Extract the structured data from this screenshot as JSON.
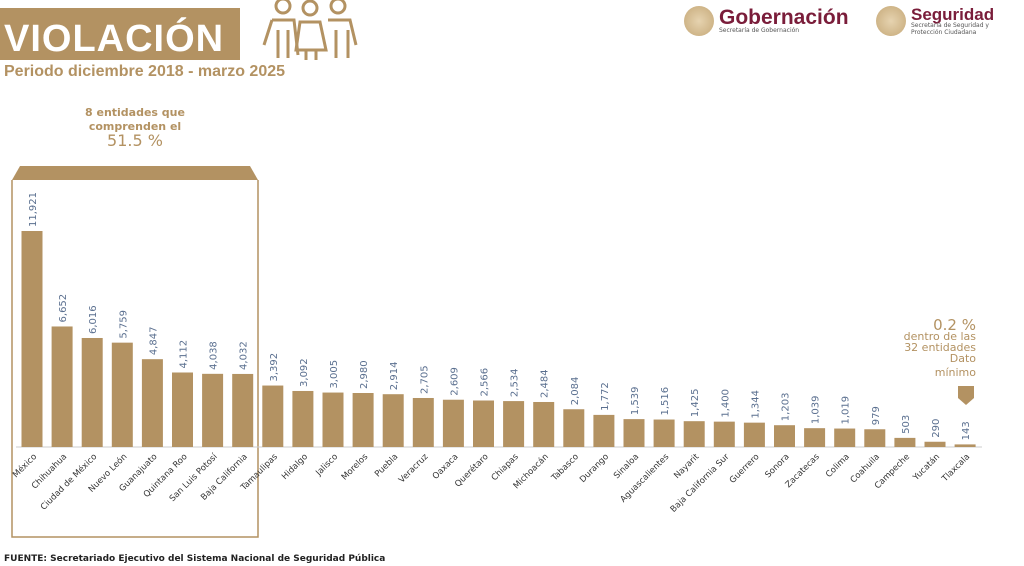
{
  "header": {
    "title": "VIOLACIÓN",
    "subtitle": "Periodo diciembre 2018 - marzo 2025"
  },
  "logos": [
    {
      "name": "Gobernación",
      "sub": "Secretaría de Gobernación"
    },
    {
      "name": "Seguridad",
      "sub": "Secretaría de Seguridad y Protección Ciudadana"
    }
  ],
  "annotation_top": {
    "line1": "8 entidades que",
    "line2": "comprenden el",
    "pct": "51.5 %"
  },
  "annotation_min": {
    "pct": "0.2 %",
    "line1": "dentro de las",
    "line2": "32 entidades",
    "line3": "Dato",
    "line4": "mínimo"
  },
  "source": "FUENTE: Secretariado Ejecutivo del Sistema Nacional de Seguridad Pública",
  "colors": {
    "bar": "#b39262",
    "value": "#5a6f8f",
    "accent": "#b39262"
  },
  "chart_data": {
    "type": "bar",
    "title": "VIOLACIÓN",
    "subtitle": "Periodo diciembre 2018 - marzo 2025",
    "xlabel": "",
    "ylabel": "",
    "ylim": [
      0,
      12000
    ],
    "grid": false,
    "categories": [
      "México",
      "Chihuahua",
      "Ciudad de México",
      "Nuevo León",
      "Guanajuato",
      "Quintana Roo",
      "San Luis Potosí",
      "Baja California",
      "Tamaulipas",
      "Hidalgo",
      "Jalisco",
      "Morelos",
      "Puebla",
      "Veracruz",
      "Oaxaca",
      "Querétaro",
      "Chiapas",
      "Michoacán",
      "Tabasco",
      "Durango",
      "Sinaloa",
      "Aguascalientes",
      "Nayarit",
      "Baja California Sur",
      "Guerrero",
      "Sonora",
      "Zacatecas",
      "Colima",
      "Coahuila",
      "Campeche",
      "Yucatán",
      "Tlaxcala"
    ],
    "values": [
      11921,
      6652,
      6016,
      5759,
      4847,
      4112,
      4038,
      4032,
      3392,
      3092,
      3005,
      2980,
      2914,
      2705,
      2609,
      2566,
      2534,
      2484,
      2084,
      1772,
      1539,
      1516,
      1425,
      1400,
      1344,
      1203,
      1039,
      1019,
      979,
      503,
      290,
      143
    ],
    "value_labels": [
      "11,921",
      "6,652",
      "6,016",
      "5,759",
      "4,847",
      "4,112",
      "4,038",
      "4,032",
      "3,392",
      "3,092",
      "3,005",
      "2,980",
      "2,914",
      "2,705",
      "2,609",
      "2,566",
      "2,534",
      "2,484",
      "2,084",
      "1,772",
      "1,539",
      "1,516",
      "1,425",
      "1,400",
      "1,344",
      "1,203",
      "1,039",
      "1,019",
      "979",
      "503",
      "290",
      "143"
    ]
  }
}
